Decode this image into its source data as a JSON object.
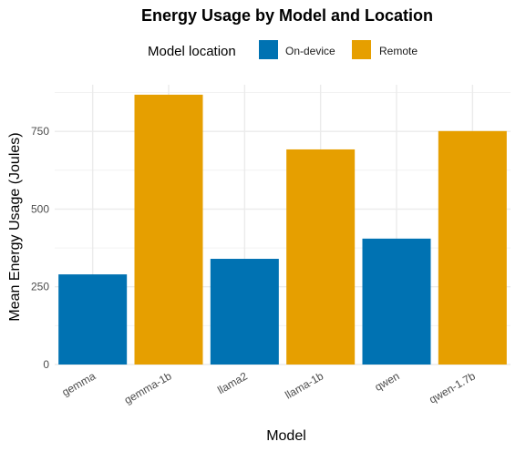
{
  "chart_data": {
    "type": "bar",
    "title": "Energy Usage by Model and Location",
    "xlabel": "Model",
    "ylabel": "Mean Energy Usage (Joules)",
    "categories": [
      "gemma",
      "gemma-1b",
      "llama2",
      "llama-1b",
      "qwen",
      "qwen-1.7b"
    ],
    "values": [
      290,
      868,
      340,
      692,
      405,
      751
    ],
    "location": [
      "On-device",
      "Remote",
      "On-device",
      "Remote",
      "On-device",
      "Remote"
    ],
    "ylim": [
      0,
      900
    ],
    "yticks": [
      0,
      250,
      500,
      750
    ],
    "grid": true,
    "legend": {
      "title": "Model location",
      "placement": "top",
      "entries": [
        {
          "label": "On-device",
          "color": "#0072B2"
        },
        {
          "label": "Remote",
          "color": "#E69F00"
        }
      ]
    }
  }
}
